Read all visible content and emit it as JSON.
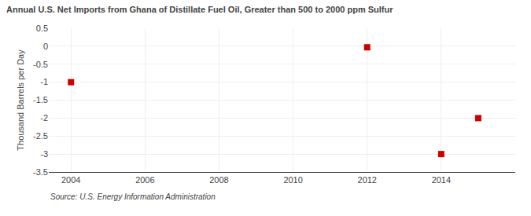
{
  "chart_data": {
    "type": "scatter",
    "title": "Annual U.S. Net Imports from Ghana of Distillate Fuel Oil, Greater than 500 to 2000 ppm Sulfur",
    "ylabel": "Thousand Barrels per Day",
    "source": "Source: U.S. Energy Information Administration",
    "x": [
      2004,
      2012,
      2014,
      2015
    ],
    "values": [
      -1.0,
      -0.03,
      -3.0,
      -2.0
    ],
    "color": "#cc0000",
    "marker": "square",
    "xlim": [
      2003.4,
      2016.0
    ],
    "ylim": [
      -3.5,
      0.5
    ],
    "xticks": [
      2004,
      2006,
      2008,
      2010,
      2012,
      2014
    ],
    "yticks": [
      0.5,
      0.0,
      -0.5,
      -1.0,
      -1.5,
      -2.0,
      -2.5,
      -3.0,
      -3.5
    ],
    "grid": true
  }
}
